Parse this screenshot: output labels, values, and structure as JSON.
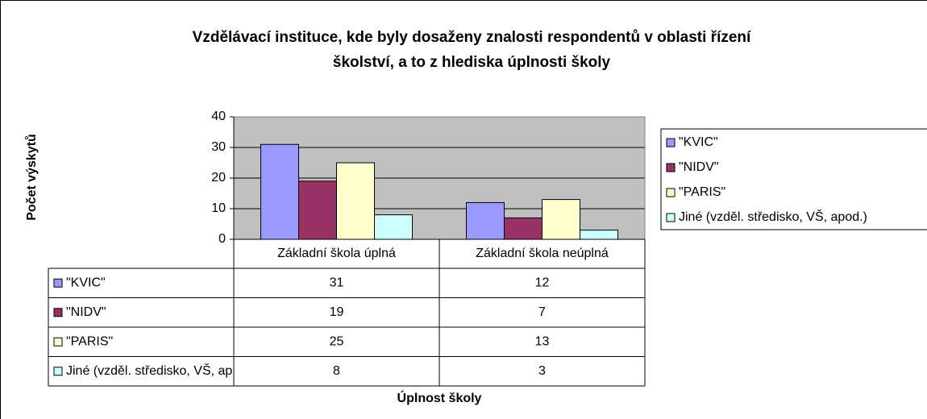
{
  "chart_data": {
    "type": "bar",
    "title": [
      "Vzdělávací instituce, kde byly dosaženy znalosti respondentů v oblasti řízení",
      "školství, a to z hlediska úplnosti školy"
    ],
    "y_label": "Počet výskytů",
    "x_label": "Úplnost školy",
    "categories": [
      "Základní škola úplná",
      "Základní škola neúplná"
    ],
    "series": [
      {
        "name": "\"KVIC\"",
        "color": "#9999ff",
        "values": [
          31,
          12
        ]
      },
      {
        "name": "\"NIDV\"",
        "color": "#993366",
        "values": [
          19,
          7
        ]
      },
      {
        "name": "\"PARIS\"",
        "color": "#ffffcc",
        "values": [
          25,
          13
        ]
      },
      {
        "name": "Jiné (vzděl. středisko, VŠ, apod.)",
        "color": "#ccffff",
        "values": [
          8,
          3
        ]
      }
    ],
    "ylim": [
      0,
      40
    ],
    "yticks": [
      0,
      10,
      20,
      30,
      40
    ],
    "grid": true,
    "legend": "right",
    "data_table": true
  }
}
